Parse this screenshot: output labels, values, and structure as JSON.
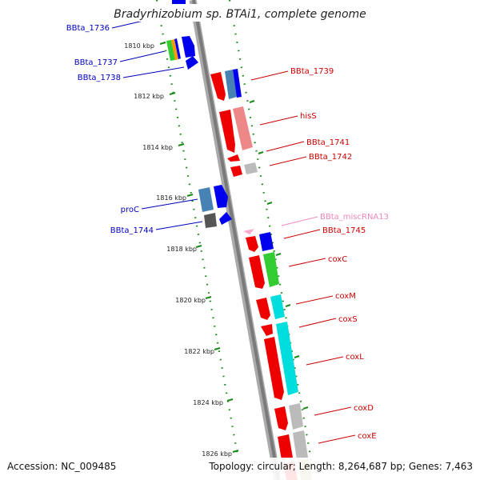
{
  "title": "Bradyrhizobium sp. BTAi1, complete genome",
  "footer": {
    "accession": "Accession: NC_009485",
    "topology": "Topology: circular; Length: 8,264,687 bp; Genes: 7,463"
  },
  "ticks": [
    "1810 kbp",
    "1812 kbp",
    "1814 kbp",
    "1816 kbp",
    "1818 kbp",
    "1820 kbp",
    "1822 kbp",
    "1824 kbp",
    "1826 kbp"
  ],
  "left_genes": [
    "BBta_1736",
    "BBta_1737",
    "BBta_1738",
    "proC",
    "BBta_1744"
  ],
  "right_genes": [
    "BBta_1739",
    "hisS",
    "BBta_1741",
    "BBta_1742",
    "BBta_miscRNA13",
    "BBta_1745",
    "coxC",
    "coxM",
    "coxS",
    "coxL",
    "coxD",
    "coxE"
  ],
  "colors": {
    "backbone": "#7a7a7a",
    "tick_dots": "#1a8a1a",
    "left_label": "#0000bb",
    "right_label": "#cc0000",
    "rna_label": "#ee88bb",
    "red": "#ee0000",
    "salmon": "#ee8888",
    "blue": "#0000ee",
    "steel": "#4682b4",
    "dark_gray": "#555555",
    "light_gray": "#bbbbbb",
    "green": "#33cc33",
    "orange": "#ff9900",
    "cyan": "#00dddd",
    "pink": "#ffaacc",
    "olive": "#bbbb66"
  }
}
